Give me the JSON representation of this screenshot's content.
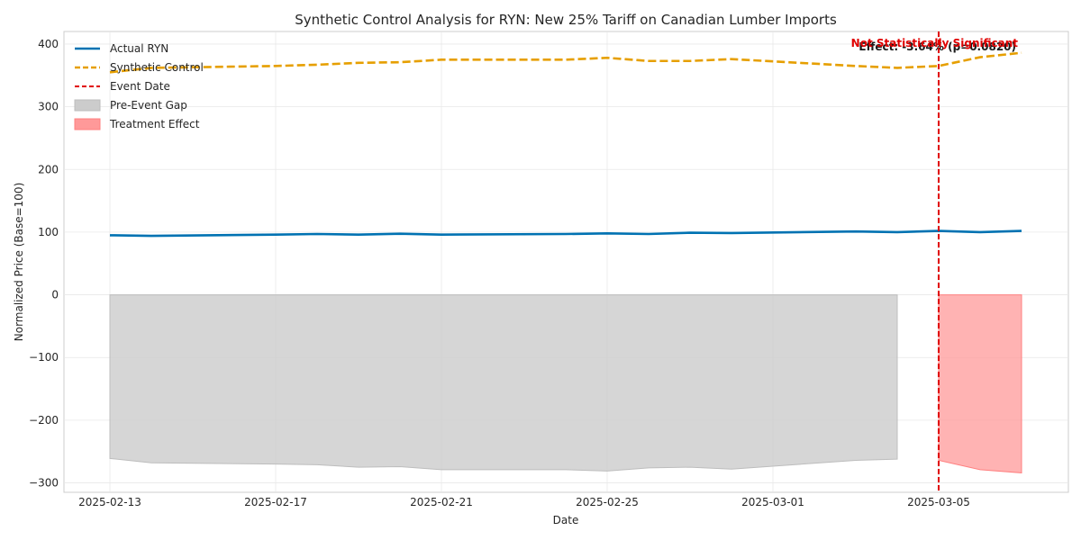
{
  "chart_data": {
    "type": "line",
    "title": "Synthetic Control Analysis for RYN: New 25% Tariff on Canadian Lumber Imports",
    "xlabel": "Date",
    "ylabel": "Normalized Price (Base=100)",
    "x_dates": [
      "2025-02-13",
      "2025-02-14",
      "2025-02-17",
      "2025-02-18",
      "2025-02-19",
      "2025-02-20",
      "2025-02-21",
      "2025-02-24",
      "2025-02-25",
      "2025-02-26",
      "2025-02-27",
      "2025-02-28",
      "2025-03-03",
      "2025-03-04",
      "2025-03-05",
      "2025-03-06",
      "2025-03-07"
    ],
    "x_tick_labels": [
      "2025-02-13",
      "2025-02-17",
      "2025-02-21",
      "2025-02-25",
      "2025-03-01",
      "2025-03-05"
    ],
    "ylim": [
      -315,
      420
    ],
    "y_ticks": [
      400,
      300,
      200,
      100,
      0,
      -100,
      -200,
      -300
    ],
    "y_tick_labels": [
      "400",
      "300",
      "200",
      "100",
      "0",
      "−100",
      "−200",
      "−300"
    ],
    "grid": true,
    "legend_position": "top-left",
    "series": [
      {
        "name": "Actual RYN",
        "style": "solid",
        "color": "#0072b2",
        "values": [
          95,
          94,
          96,
          97,
          96,
          97.5,
          96,
          97,
          98,
          97,
          99,
          98.5,
          101,
          100,
          102,
          100,
          102
        ]
      },
      {
        "name": "Synthetic Control",
        "style": "dashed",
        "color": "#e69f00",
        "values": [
          355,
          362,
          365,
          367,
          370,
          371,
          375,
          375,
          378,
          373,
          373,
          376,
          365,
          362,
          365,
          379,
          386
        ]
      }
    ],
    "pre_event_gap": {
      "name": "Pre-Event Gap",
      "color": "#cccccc",
      "start_index": 0,
      "end_index": 13,
      "values": [
        -261,
        -268,
        -270,
        -271,
        -275,
        -274,
        -279,
        -279,
        -281,
        -276,
        -275,
        -278,
        -264,
        -262
      ]
    },
    "treatment_effect": {
      "name": "Treatment Effect",
      "color": "#ff9999",
      "start_index": 14,
      "end_index": 16,
      "values": [
        -264,
        -279,
        -284
      ]
    },
    "event": {
      "name": "Event Date",
      "date": "2025-03-05",
      "index": 14,
      "color": "#e00000"
    },
    "annotations": {
      "effect_text": "Effect: -3.64% (p=0.0820)",
      "significance_text": "Not Statistically Significant"
    }
  }
}
